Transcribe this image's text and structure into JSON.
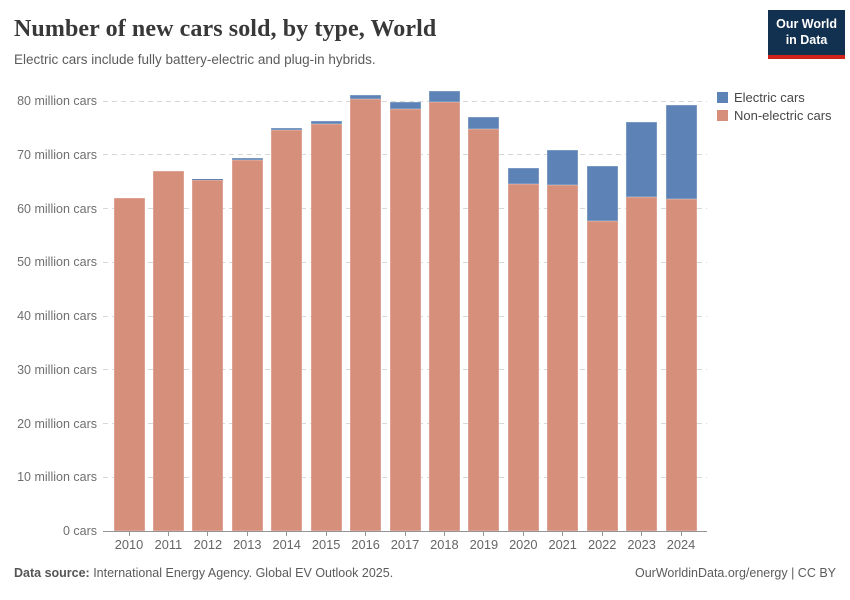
{
  "header": {
    "title": "Number of new cars sold, by type, World",
    "subtitle": "Electric cars include fully battery-electric and plug-in hybrids.",
    "logo": {
      "line1": "Our World",
      "line2": "in Data"
    }
  },
  "legend": [
    {
      "label": "Electric cars",
      "color": "#5d83b6"
    },
    {
      "label": "Non-electric cars",
      "color": "#d68f7b"
    }
  ],
  "chart_data": {
    "type": "bar",
    "stacked": true,
    "title": "Number of new cars sold, by type, World",
    "categories": [
      "2010",
      "2011",
      "2012",
      "2013",
      "2014",
      "2015",
      "2016",
      "2017",
      "2018",
      "2019",
      "2020",
      "2021",
      "2022",
      "2023",
      "2024"
    ],
    "series": [
      {
        "name": "Non-electric cars",
        "color": "#d68f7b",
        "values": [
          62.0,
          66.9,
          65.4,
          69.1,
          74.6,
          75.8,
          80.4,
          78.6,
          79.9,
          74.8,
          64.6,
          64.3,
          57.6,
          62.2,
          61.8
        ]
      },
      {
        "name": "Electric cars",
        "color": "#5d83b6",
        "values": [
          0.01,
          0.06,
          0.13,
          0.22,
          0.32,
          0.55,
          0.75,
          1.2,
          2.0,
          2.2,
          3.0,
          6.6,
          10.3,
          13.9,
          17.5
        ]
      }
    ],
    "ylim": [
      0,
      80
    ],
    "ytick_interval": 10,
    "ytick_labels": [
      "0 cars",
      "10 million cars",
      "20 million cars",
      "30 million cars",
      "40 million cars",
      "50 million cars",
      "60 million cars",
      "70 million cars",
      "80 million cars"
    ],
    "grid": "horizontal-dashed",
    "legend_position": "right"
  },
  "footer": {
    "source_label": "Data source:",
    "source_text": " International Energy Agency. Global EV Outlook 2025.",
    "right_text": "OurWorldinData.org/energy | CC BY"
  },
  "colors": {
    "electric": "#5d83b6",
    "non_electric": "#d68f7b",
    "logo_bg": "#12304f",
    "logo_underline": "#d0231c",
    "grid": "#d8d8d8",
    "axis": "#949494"
  }
}
